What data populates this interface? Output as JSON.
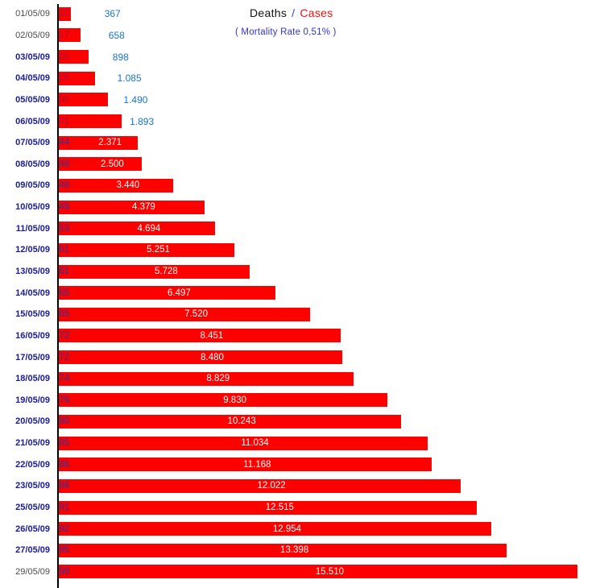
{
  "legend": {
    "deaths_label": "Deaths",
    "separator": "/",
    "cases_label": "Cases",
    "mortality_note": "( Mortality Rate 0,51% )"
  },
  "colors": {
    "bar_red": "#FD0000",
    "cases_outside_blue": "#1874CD",
    "date_navy": "#1A1A99",
    "date_gray": "#4A4A4A",
    "deaths_navy": "#32329B",
    "deaths_behind_bar": "#A61140",
    "inside_white": "#FFFFFF",
    "legend_black": "#111111",
    "legend_slash_blue": "#3344CC",
    "legend_red": "#EE1111",
    "note_blue": "#3333CC",
    "axis_black": "#000000"
  },
  "rows": [
    {
      "date": "01/05/09",
      "deaths": "10",
      "cases": "367"
    },
    {
      "date": "02/05/09",
      "deaths": "17",
      "cases": "658"
    },
    {
      "date": "03/05/09",
      "deaths": "20",
      "cases": "898"
    },
    {
      "date": "04/05/09",
      "deaths": "26",
      "cases": "1.085"
    },
    {
      "date": "05/05/09",
      "deaths": "30",
      "cases": "1.490"
    },
    {
      "date": "06/05/09",
      "deaths": "31",
      "cases": "1.893"
    },
    {
      "date": "07/05/09",
      "deaths": "44",
      "cases": "2.371"
    },
    {
      "date": "08/05/09",
      "deaths": "46",
      "cases": "2.500"
    },
    {
      "date": "09/05/09",
      "deaths": "48",
      "cases": "3.440"
    },
    {
      "date": "10/05/09",
      "deaths": "49",
      "cases": "4.379"
    },
    {
      "date": "11/05/09",
      "deaths": "53",
      "cases": "4.694"
    },
    {
      "date": "12/05/09",
      "deaths": "61",
      "cases": "5.251"
    },
    {
      "date": "13/05/09",
      "deaths": "61",
      "cases": "5.728"
    },
    {
      "date": "14/05/09",
      "deaths": "65",
      "cases": "6.497"
    },
    {
      "date": "15/05/09",
      "deaths": "65",
      "cases": "7.520"
    },
    {
      "date": "16/05/09",
      "deaths": "72",
      "cases": "8.451"
    },
    {
      "date": "17/05/09",
      "deaths": "72",
      "cases": "8.480"
    },
    {
      "date": "18/05/09",
      "deaths": "74",
      "cases": "8.829"
    },
    {
      "date": "19/05/09",
      "deaths": "79",
      "cases": "9.830"
    },
    {
      "date": "20/05/09",
      "deaths": "80",
      "cases": "10.243"
    },
    {
      "date": "21/05/09",
      "deaths": "85",
      "cases": "11.034"
    },
    {
      "date": "22/05/09",
      "deaths": "86",
      "cases": "11.168"
    },
    {
      "date": "23/05/09",
      "deaths": "86",
      "cases": "12.022"
    },
    {
      "date": "25/05/09",
      "deaths": "91",
      "cases": "12.515"
    },
    {
      "date": "26/05/09",
      "deaths": "92",
      "cases": "12.954"
    },
    {
      "date": "27/05/09",
      "deaths": "95",
      "cases": "13.398"
    },
    {
      "date": "29/05/09",
      "deaths": "99",
      "cases": "15.510"
    }
  ],
  "chart_data": {
    "type": "bar",
    "orientation": "horizontal",
    "title": "Deaths / Cases",
    "subtitle": "( Mortality Rate 0,51% )",
    "categories": [
      "01/05/09",
      "02/05/09",
      "03/05/09",
      "04/05/09",
      "05/05/09",
      "06/05/09",
      "07/05/09",
      "08/05/09",
      "09/05/09",
      "10/05/09",
      "11/05/09",
      "12/05/09",
      "13/05/09",
      "14/05/09",
      "15/05/09",
      "16/05/09",
      "17/05/09",
      "18/05/09",
      "19/05/09",
      "20/05/09",
      "21/05/09",
      "22/05/09",
      "23/05/09",
      "25/05/09",
      "26/05/09",
      "27/05/09",
      "29/05/09"
    ],
    "series": [
      {
        "name": "Deaths",
        "values": [
          10,
          17,
          20,
          26,
          30,
          31,
          44,
          46,
          48,
          49,
          53,
          61,
          61,
          65,
          65,
          72,
          72,
          74,
          79,
          80,
          85,
          86,
          86,
          91,
          92,
          95,
          99
        ]
      },
      {
        "name": "Cases",
        "values": [
          367,
          658,
          898,
          1085,
          1490,
          1893,
          2371,
          2500,
          3440,
          4379,
          4694,
          5251,
          5728,
          6497,
          7520,
          8451,
          8480,
          8829,
          9830,
          10243,
          11034,
          11168,
          12022,
          12515,
          12954,
          13398,
          15510
        ]
      }
    ],
    "xlim": [
      0,
      15510
    ],
    "grid": false,
    "legend_position": "top",
    "bar_color": "#FD0000",
    "value_labels": "Cases centered in bar (white) or right of bar (blue) for first six rows; Deaths at left edge of bar (navy)"
  }
}
